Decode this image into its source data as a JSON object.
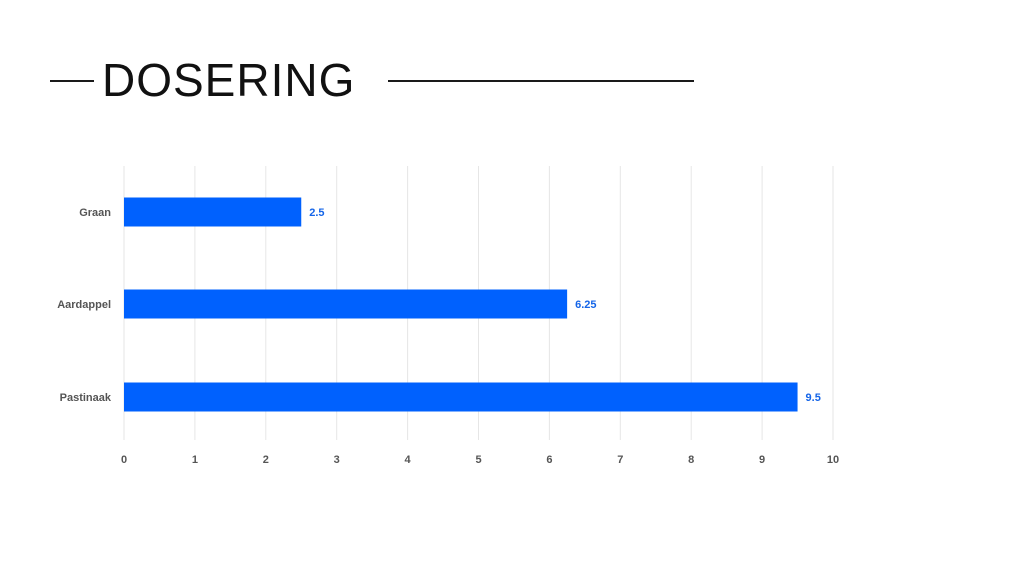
{
  "slide": {
    "title": "DOSERING"
  },
  "colors": {
    "bar": "#0061FE",
    "data_label": "#1565E8",
    "grid": "#E6E6E6",
    "axis_text": "#555555"
  },
  "chart_data": {
    "type": "bar",
    "orientation": "horizontal",
    "categories": [
      "Graan",
      "Aardappel",
      "Pastinaak"
    ],
    "values": [
      2.5,
      6.25,
      9.5
    ],
    "data_labels": [
      "2.5",
      "6.25",
      "9.5"
    ],
    "xlim": [
      0,
      10
    ],
    "x_ticks": [
      0,
      1,
      2,
      3,
      4,
      5,
      6,
      7,
      8,
      9,
      10
    ],
    "grid": true,
    "legend": "none"
  }
}
